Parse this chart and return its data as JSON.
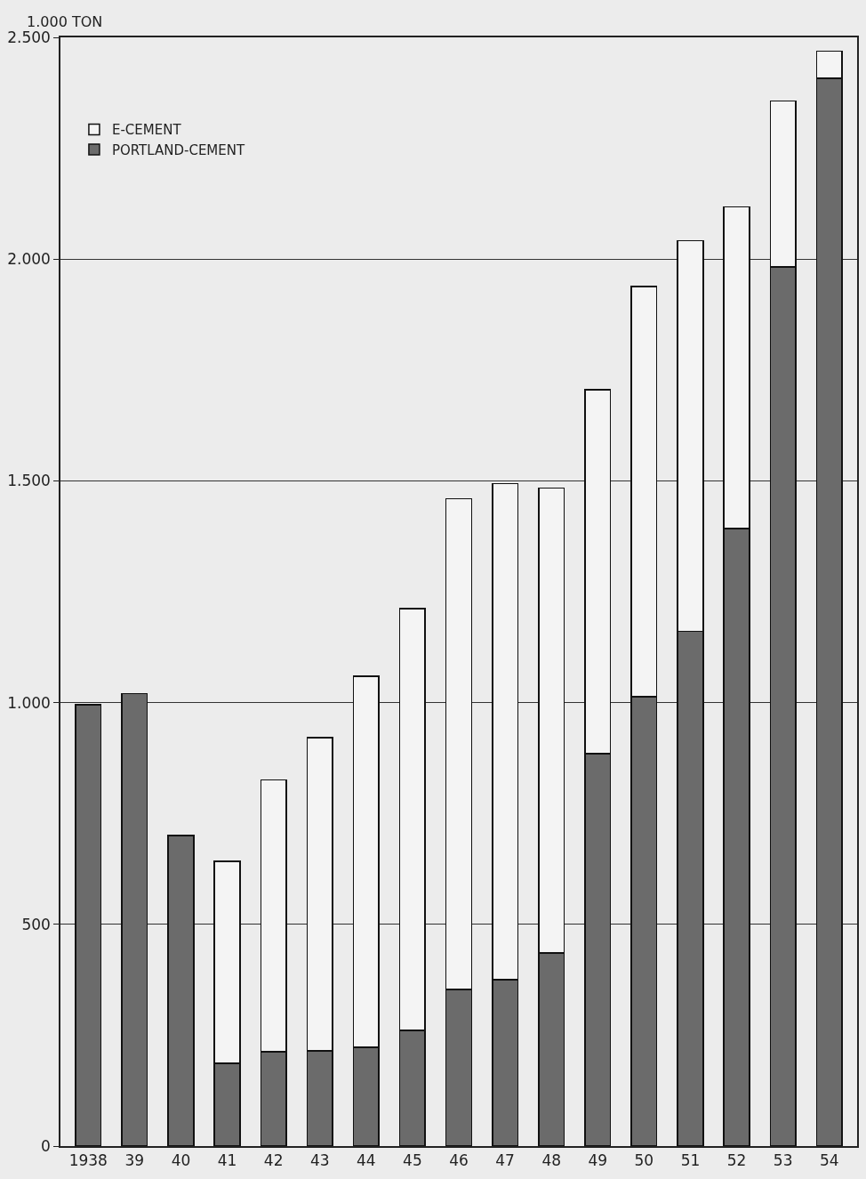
{
  "chart_data": {
    "type": "bar",
    "stacked": true,
    "ylabel": "1.000 TON",
    "categories": [
      "1938",
      "39",
      "40",
      "41",
      "42",
      "43",
      "44",
      "45",
      "46",
      "47",
      "48",
      "49",
      "50",
      "51",
      "52",
      "53",
      "54"
    ],
    "series": [
      {
        "name": "PORTLAND-CEMENT",
        "color": "#6b6b6b",
        "values": [
          995,
          1020,
          700,
          187,
          213,
          215,
          223,
          261,
          353,
          375,
          435,
          885,
          1013,
          1161,
          1392,
          1982,
          2408
        ]
      },
      {
        "name": "E-CEMENT",
        "color": "#f4f4f4",
        "values": [
          null,
          null,
          null,
          455,
          613,
          706,
          836,
          951,
          1107,
          1119,
          1049,
          820,
          925,
          881,
          726,
          375,
          61
        ]
      }
    ],
    "ylim": [
      0,
      2500
    ],
    "yticks": [
      0,
      500,
      {
        "value": 1000,
        "label": "1.000"
      },
      {
        "value": 1500,
        "label": "1.500"
      },
      {
        "value": 2000,
        "label": "2.000"
      },
      {
        "value": 2500,
        "label": "2.500"
      }
    ],
    "grid": "y",
    "legend": "top left"
  }
}
